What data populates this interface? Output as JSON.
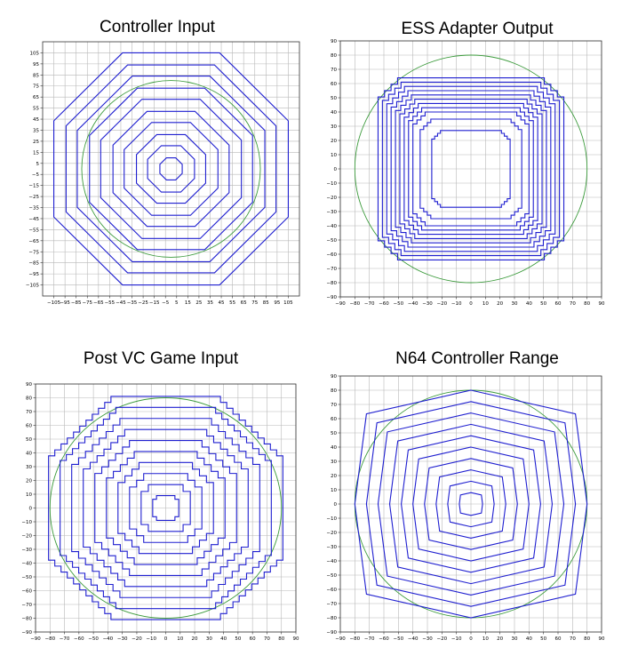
{
  "chart_data": [
    {
      "type": "line",
      "title": "Controller Input",
      "xlim": [
        -115,
        115
      ],
      "ylim": [
        -115,
        115
      ],
      "xticks": [
        -105,
        -95,
        -85,
        -75,
        -65,
        -55,
        -45,
        -35,
        -25,
        -15,
        -5,
        5,
        15,
        25,
        35,
        45,
        55,
        65,
        75,
        85,
        95,
        105
      ],
      "yticks": [
        -105,
        -95,
        -85,
        -75,
        -65,
        -55,
        -45,
        -35,
        -25,
        -15,
        -5,
        5,
        15,
        25,
        35,
        45,
        55,
        65,
        75,
        85,
        95,
        105
      ],
      "grid": true,
      "shape": "octagon",
      "ring_radii": [
        105,
        94,
        84,
        73,
        63,
        52,
        42,
        31,
        21,
        10
      ],
      "circle_radius": 80,
      "series_color": "#1f1fd0",
      "circle_color": "#3a9a3a"
    },
    {
      "type": "line",
      "title": "ESS Adapter Output",
      "xlim": [
        -90,
        90
      ],
      "ylim": [
        -90,
        90
      ],
      "xticks": [
        -90,
        -80,
        -70,
        -60,
        -50,
        -40,
        -30,
        -20,
        -10,
        0,
        10,
        20,
        30,
        40,
        50,
        60,
        70,
        80,
        90
      ],
      "yticks": [
        -90,
        -80,
        -70,
        -60,
        -50,
        -40,
        -30,
        -20,
        -10,
        0,
        10,
        20,
        30,
        40,
        50,
        60,
        70,
        80,
        90
      ],
      "grid": true,
      "shape": "rounded-square-steps",
      "ring_radii": [
        64,
        61,
        58,
        55,
        52,
        49,
        46,
        43,
        40,
        35,
        27
      ],
      "circle_radius": 80,
      "series_color": "#1f1fd0",
      "circle_color": "#3a9a3a"
    },
    {
      "type": "line",
      "title": "Post VC Game Input",
      "xlim": [
        -90,
        90
      ],
      "ylim": [
        -90,
        90
      ],
      "xticks": [
        -90,
        -80,
        -70,
        -60,
        -50,
        -40,
        -30,
        -20,
        -10,
        0,
        10,
        20,
        30,
        40,
        50,
        60,
        70,
        80,
        90
      ],
      "yticks": [
        -90,
        -80,
        -70,
        -60,
        -50,
        -40,
        -30,
        -20,
        -10,
        0,
        10,
        20,
        30,
        40,
        50,
        60,
        70,
        80,
        90
      ],
      "grid": true,
      "shape": "stepped-octagon",
      "ring_radii": [
        81,
        73,
        65,
        57,
        49,
        41,
        33,
        25,
        17,
        9
      ],
      "circle_radius": 80,
      "series_color": "#1f1fd0",
      "circle_color": "#3a9a3a"
    },
    {
      "type": "line",
      "title": "N64 Controller Range",
      "xlim": [
        -90,
        90
      ],
      "ylim": [
        -90,
        90
      ],
      "xticks": [
        -90,
        -80,
        -70,
        -60,
        -50,
        -40,
        -30,
        -20,
        -10,
        0,
        10,
        20,
        30,
        40,
        50,
        60,
        70,
        80,
        90
      ],
      "yticks": [
        -90,
        -80,
        -70,
        -60,
        -50,
        -40,
        -30,
        -20,
        -10,
        0,
        10,
        20,
        30,
        40,
        50,
        60,
        70,
        80,
        90
      ],
      "grid": true,
      "shape": "octagon",
      "ring_radii": [
        80,
        72,
        64,
        56,
        48,
        40,
        32,
        24,
        16,
        8
      ],
      "circle_radius": 80,
      "series_color": "#1f1fd0",
      "circle_color": "#3a9a3a"
    }
  ]
}
